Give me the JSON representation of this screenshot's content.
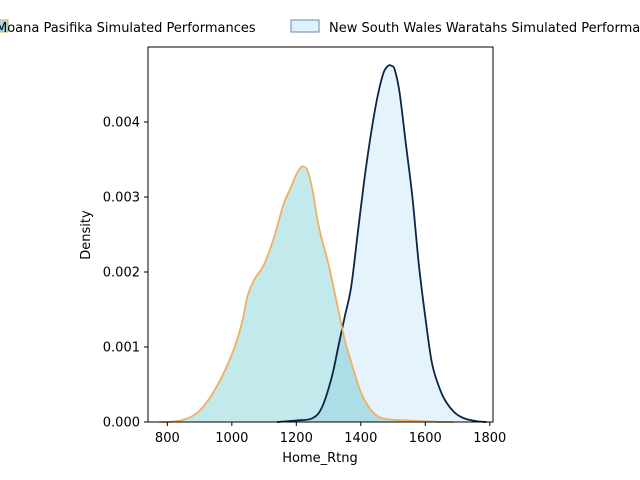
{
  "chart_data": {
    "type": "area",
    "title": "",
    "xlabel": "Home_Rtng",
    "ylabel": "Density",
    "xlim": [
      740,
      1810
    ],
    "ylim": [
      0,
      0.005
    ],
    "xticks": [
      800,
      1000,
      1200,
      1400,
      1600,
      1800
    ],
    "yticks": [
      0.0,
      0.001,
      0.002,
      0.003,
      0.004
    ],
    "ytick_labels": [
      "0.000",
      "0.001",
      "0.002",
      "0.003",
      "0.004"
    ],
    "grid": false,
    "legend_placement": "top",
    "series": [
      {
        "name": "Moana Pasifika Simulated Performances",
        "fill_color": "#a8e0e2",
        "line_color": "#f0b060",
        "x": [
          775,
          800,
          850,
          900,
          950,
          1000,
          1030,
          1050,
          1070,
          1100,
          1130,
          1160,
          1180,
          1200,
          1215,
          1225,
          1235,
          1250,
          1270,
          1300,
          1330,
          1350,
          1370,
          1400,
          1430,
          1460,
          1500,
          1550,
          1600,
          1650,
          1690
        ],
        "y": [
          0.0,
          0.0,
          3e-05,
          0.00015,
          0.00045,
          0.0009,
          0.0013,
          0.0017,
          0.0019,
          0.0021,
          0.00245,
          0.0029,
          0.0031,
          0.0033,
          0.0034,
          0.0034,
          0.00335,
          0.0031,
          0.0026,
          0.0021,
          0.0015,
          0.0011,
          0.0008,
          0.0004,
          0.00017,
          6e-05,
          3e-05,
          2e-05,
          1e-05,
          0.0,
          0.0
        ]
      },
      {
        "name": "New South Wales Waratahs Simulated Performances",
        "fill_color": "#dff1fb",
        "line_color": "#0b2545",
        "x": [
          1140,
          1200,
          1250,
          1280,
          1310,
          1330,
          1350,
          1370,
          1390,
          1410,
          1430,
          1450,
          1470,
          1485,
          1495,
          1505,
          1520,
          1540,
          1560,
          1580,
          1600,
          1620,
          1640,
          1660,
          1690,
          1720,
          1760,
          1790
        ],
        "y": [
          0.0,
          2e-05,
          5e-05,
          0.0002,
          0.0006,
          0.001,
          0.0014,
          0.0018,
          0.0025,
          0.0032,
          0.0038,
          0.0043,
          0.00465,
          0.00475,
          0.00475,
          0.0047,
          0.0044,
          0.0037,
          0.003,
          0.0021,
          0.0014,
          0.0008,
          0.0005,
          0.0003,
          0.00013,
          5e-05,
          1e-05,
          0.0
        ]
      }
    ]
  }
}
